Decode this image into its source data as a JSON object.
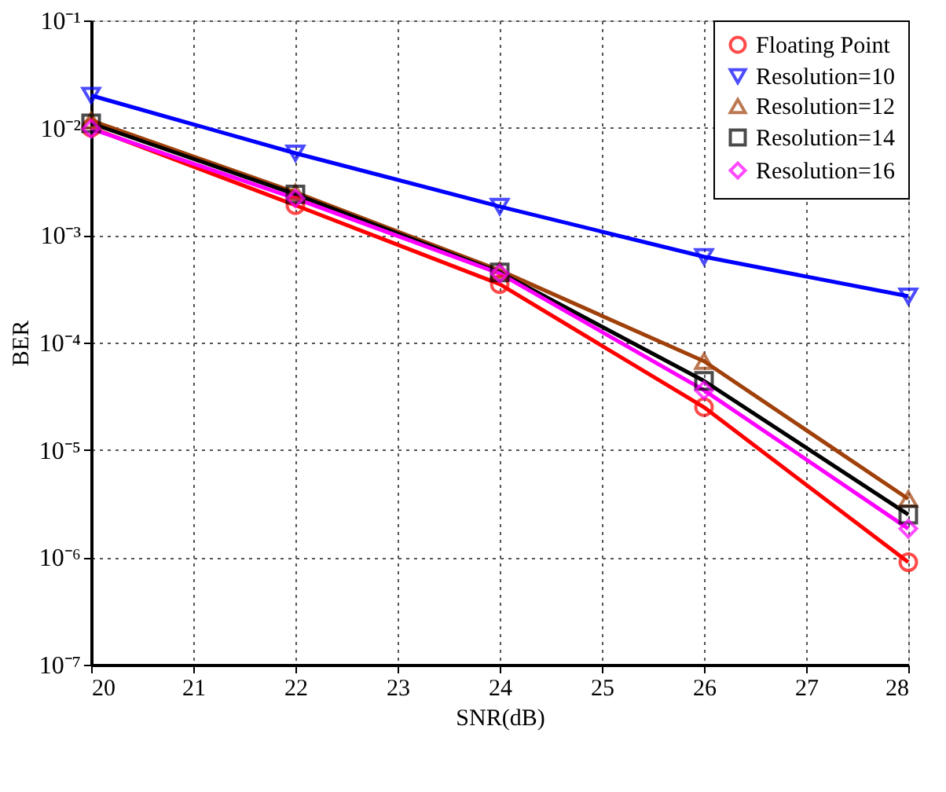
{
  "chart_data": {
    "type": "line",
    "xlabel": "SNR(dB)",
    "ylabel": "BER",
    "log": "y",
    "x": [
      20,
      22,
      24,
      26,
      28
    ],
    "xlim": [
      20,
      28
    ],
    "xticks": [
      20,
      21,
      22,
      23,
      24,
      25,
      26,
      27,
      28
    ],
    "ylim": [
      1e-07,
      0.1
    ],
    "yticks": [
      {
        "value": 1e-07,
        "label": "10⁻⁷"
      },
      {
        "value": 1e-06,
        "label": "10⁻⁶"
      },
      {
        "value": 1e-05,
        "label": "10⁻⁵"
      },
      {
        "value": 0.0001,
        "label": "10⁻⁴"
      },
      {
        "value": 0.001,
        "label": "10⁻³"
      },
      {
        "value": 0.01,
        "label": "10⁻²"
      },
      {
        "value": 0.1,
        "label": "10⁻¹"
      }
    ],
    "grid": true,
    "legend": "top right",
    "line_style": "solid",
    "series": [
      {
        "name": "Floating Point",
        "color": "#ff0000",
        "marker": "circle",
        "values": [
          0.01,
          0.0019,
          0.00035,
          2.5e-05,
          9e-07
        ]
      },
      {
        "name": "Resolution=10",
        "color": "#0000ff",
        "marker": "triangle-down",
        "values": [
          0.02,
          0.0058,
          0.00185,
          0.00063,
          0.00027
        ]
      },
      {
        "name": "Resolution=12",
        "color": "#a0400a",
        "marker": "triangle-up",
        "values": [
          0.0117,
          0.0025,
          0.00047,
          6.7e-05,
          3.5e-06
        ]
      },
      {
        "name": "Resolution=14",
        "color": "#000000",
        "marker": "square",
        "values": [
          0.011,
          0.0024,
          0.00045,
          4.4e-05,
          2.5e-06
        ]
      },
      {
        "name": "Resolution=16",
        "color": "#ff00ff",
        "marker": "diamond",
        "values": [
          0.0098,
          0.0022,
          0.00044,
          3.6e-05,
          1.85e-06
        ]
      }
    ]
  }
}
